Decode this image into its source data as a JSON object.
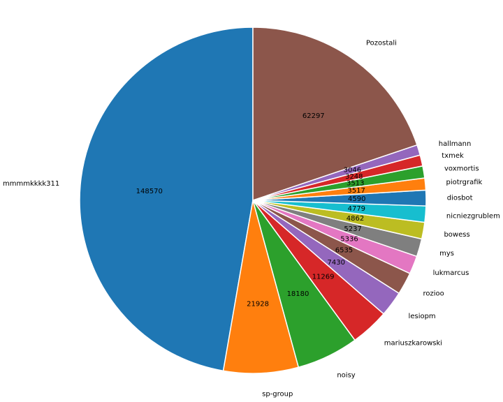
{
  "chart_data": {
    "type": "pie",
    "start_angle_deg": 90,
    "direction": "counterclockwise",
    "labels": [
      "mmmmkkkk311",
      "sp-group",
      "noisy",
      "mariuszkarowski",
      "lesiopm",
      "rozioo",
      "lukmarcus",
      "mys",
      "bowess",
      "nicniezgrublem",
      "diosbot",
      "piotrgrafik",
      "voxmortis",
      "txmek",
      "hallmann",
      "Pozostali"
    ],
    "values": [
      148570,
      21928,
      18180,
      11269,
      7430,
      6535,
      5336,
      5237,
      4862,
      4779,
      4590,
      3517,
      3513,
      3248,
      3046,
      62297
    ],
    "value_labels": [
      "148570",
      "21928",
      "18180",
      "11269",
      "7430",
      "6535",
      "5336",
      "5237",
      "4862",
      "4779",
      "4590",
      "3517",
      "3513",
      "3248",
      "3046",
      "62297"
    ],
    "colors": [
      "#1f77b4",
      "#ff7f0e",
      "#2ca02c",
      "#d62728",
      "#9467bd",
      "#8c564b",
      "#e377c2",
      "#7f7f7f",
      "#bcbd22",
      "#17becf",
      "#1f77b4",
      "#ff7f0e",
      "#2ca02c",
      "#d62728",
      "#9467bd",
      "#8c564b"
    ]
  }
}
